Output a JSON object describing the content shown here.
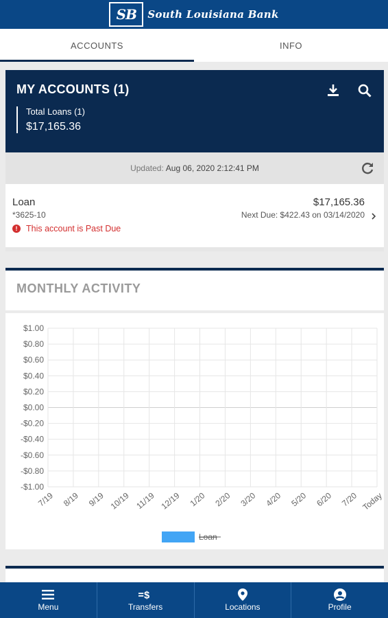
{
  "app": {
    "logo_mark": "SB",
    "bank_name": "South Louisiana Bank"
  },
  "tabs": [
    {
      "label": "ACCOUNTS",
      "active": true
    },
    {
      "label": "INFO",
      "active": false
    }
  ],
  "accounts": {
    "title": "MY ACCOUNTS (1)",
    "icons": [
      "download-icon",
      "search-icon"
    ],
    "total_label": "Total Loans (1)",
    "total_amount": "$17,165.36",
    "updated_label": "Updated:",
    "updated_value": "Aug 06, 2020 2:12:41 PM"
  },
  "loan": {
    "name": "Loan",
    "number": "*3625-10",
    "status": "This account is Past Due",
    "amount": "$17,165.36",
    "next_due": "Next Due: $422.43 on 03/14/2020"
  },
  "activity": {
    "title": "MONTHLY ACTIVITY"
  },
  "chart_data": {
    "type": "bar",
    "categories": [
      "7/19",
      "8/19",
      "9/19",
      "10/19",
      "11/19",
      "12/19",
      "1/20",
      "2/20",
      "3/20",
      "4/20",
      "5/20",
      "6/20",
      "7/20",
      "Today"
    ],
    "series": [
      {
        "name": "Loan",
        "values": [
          0,
          0,
          0,
          0,
          0,
          0,
          0,
          0,
          0,
          0,
          0,
          0,
          0,
          0
        ],
        "color": "#42a5f5"
      }
    ],
    "yticks": [
      "$1.00",
      "$0.80",
      "$0.60",
      "$0.40",
      "$0.20",
      "$0.00",
      "-$0.20",
      "-$0.40",
      "-$0.60",
      "-$0.80",
      "-$1.00"
    ],
    "ylim": [
      -1,
      1
    ],
    "grid": true,
    "legend": "bottom"
  },
  "nav": [
    {
      "label": "Menu",
      "icon": "menu-icon"
    },
    {
      "label": "Transfers",
      "icon": "transfer-icon"
    },
    {
      "label": "Locations",
      "icon": "location-icon"
    },
    {
      "label": "Profile",
      "icon": "profile-icon"
    }
  ],
  "colors": {
    "brand": "#0a4786",
    "header": "#0b2a50",
    "alert": "#d32f2f",
    "series": "#42a5f5"
  }
}
